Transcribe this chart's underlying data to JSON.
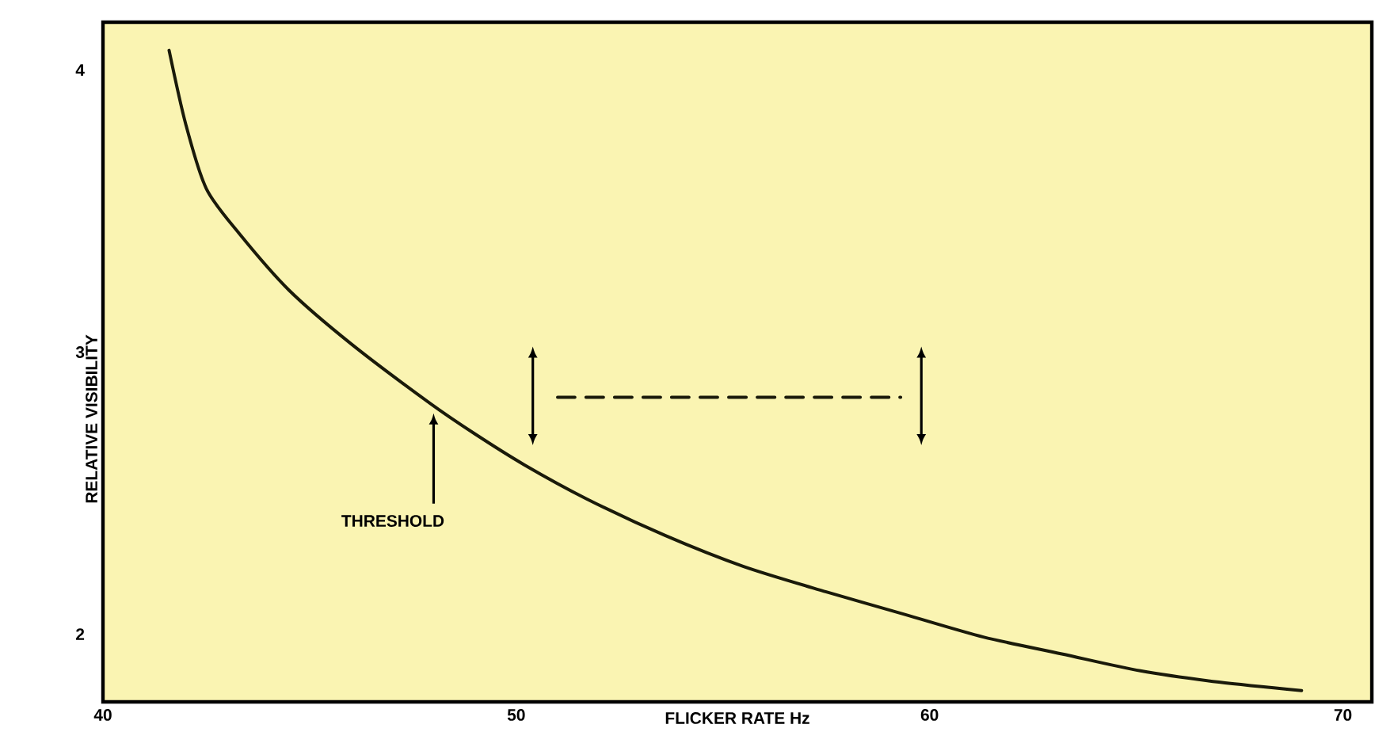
{
  "chart_data": {
    "type": "line",
    "xlabel": "FLICKER RATE Hz",
    "ylabel": "RELATIVE VISIBILITY",
    "x": [
      41.6,
      42.0,
      42.5,
      43.3,
      44.5,
      46.0,
      47.9,
      49.0,
      50.2,
      51.7,
      53.6,
      55.5,
      57.5,
      59.4,
      61.3,
      63.2,
      65.1,
      67.0,
      69.0
    ],
    "series": [
      {
        "color": "#1a1a0a",
        "values": [
          4.07,
          3.81,
          3.58,
          3.42,
          3.22,
          3.03,
          2.82,
          2.71,
          2.6,
          2.48,
          2.35,
          2.24,
          2.15,
          2.07,
          1.99,
          1.93,
          1.87,
          1.83,
          1.8
        ]
      },
      {
        "color": "#1a1a0a",
        "x": [
          51.0,
          59.3
        ],
        "values": [
          2.84,
          2.84
        ],
        "line_style": "dashed"
      }
    ],
    "xlim": [
      40,
      70.7
    ],
    "ylim": [
      1.76,
      4.17
    ],
    "xticks": [
      40,
      50,
      60,
      70
    ],
    "yticks": [
      2,
      3,
      4
    ],
    "annotations": [
      "THRESHOLD"
    ]
  }
}
